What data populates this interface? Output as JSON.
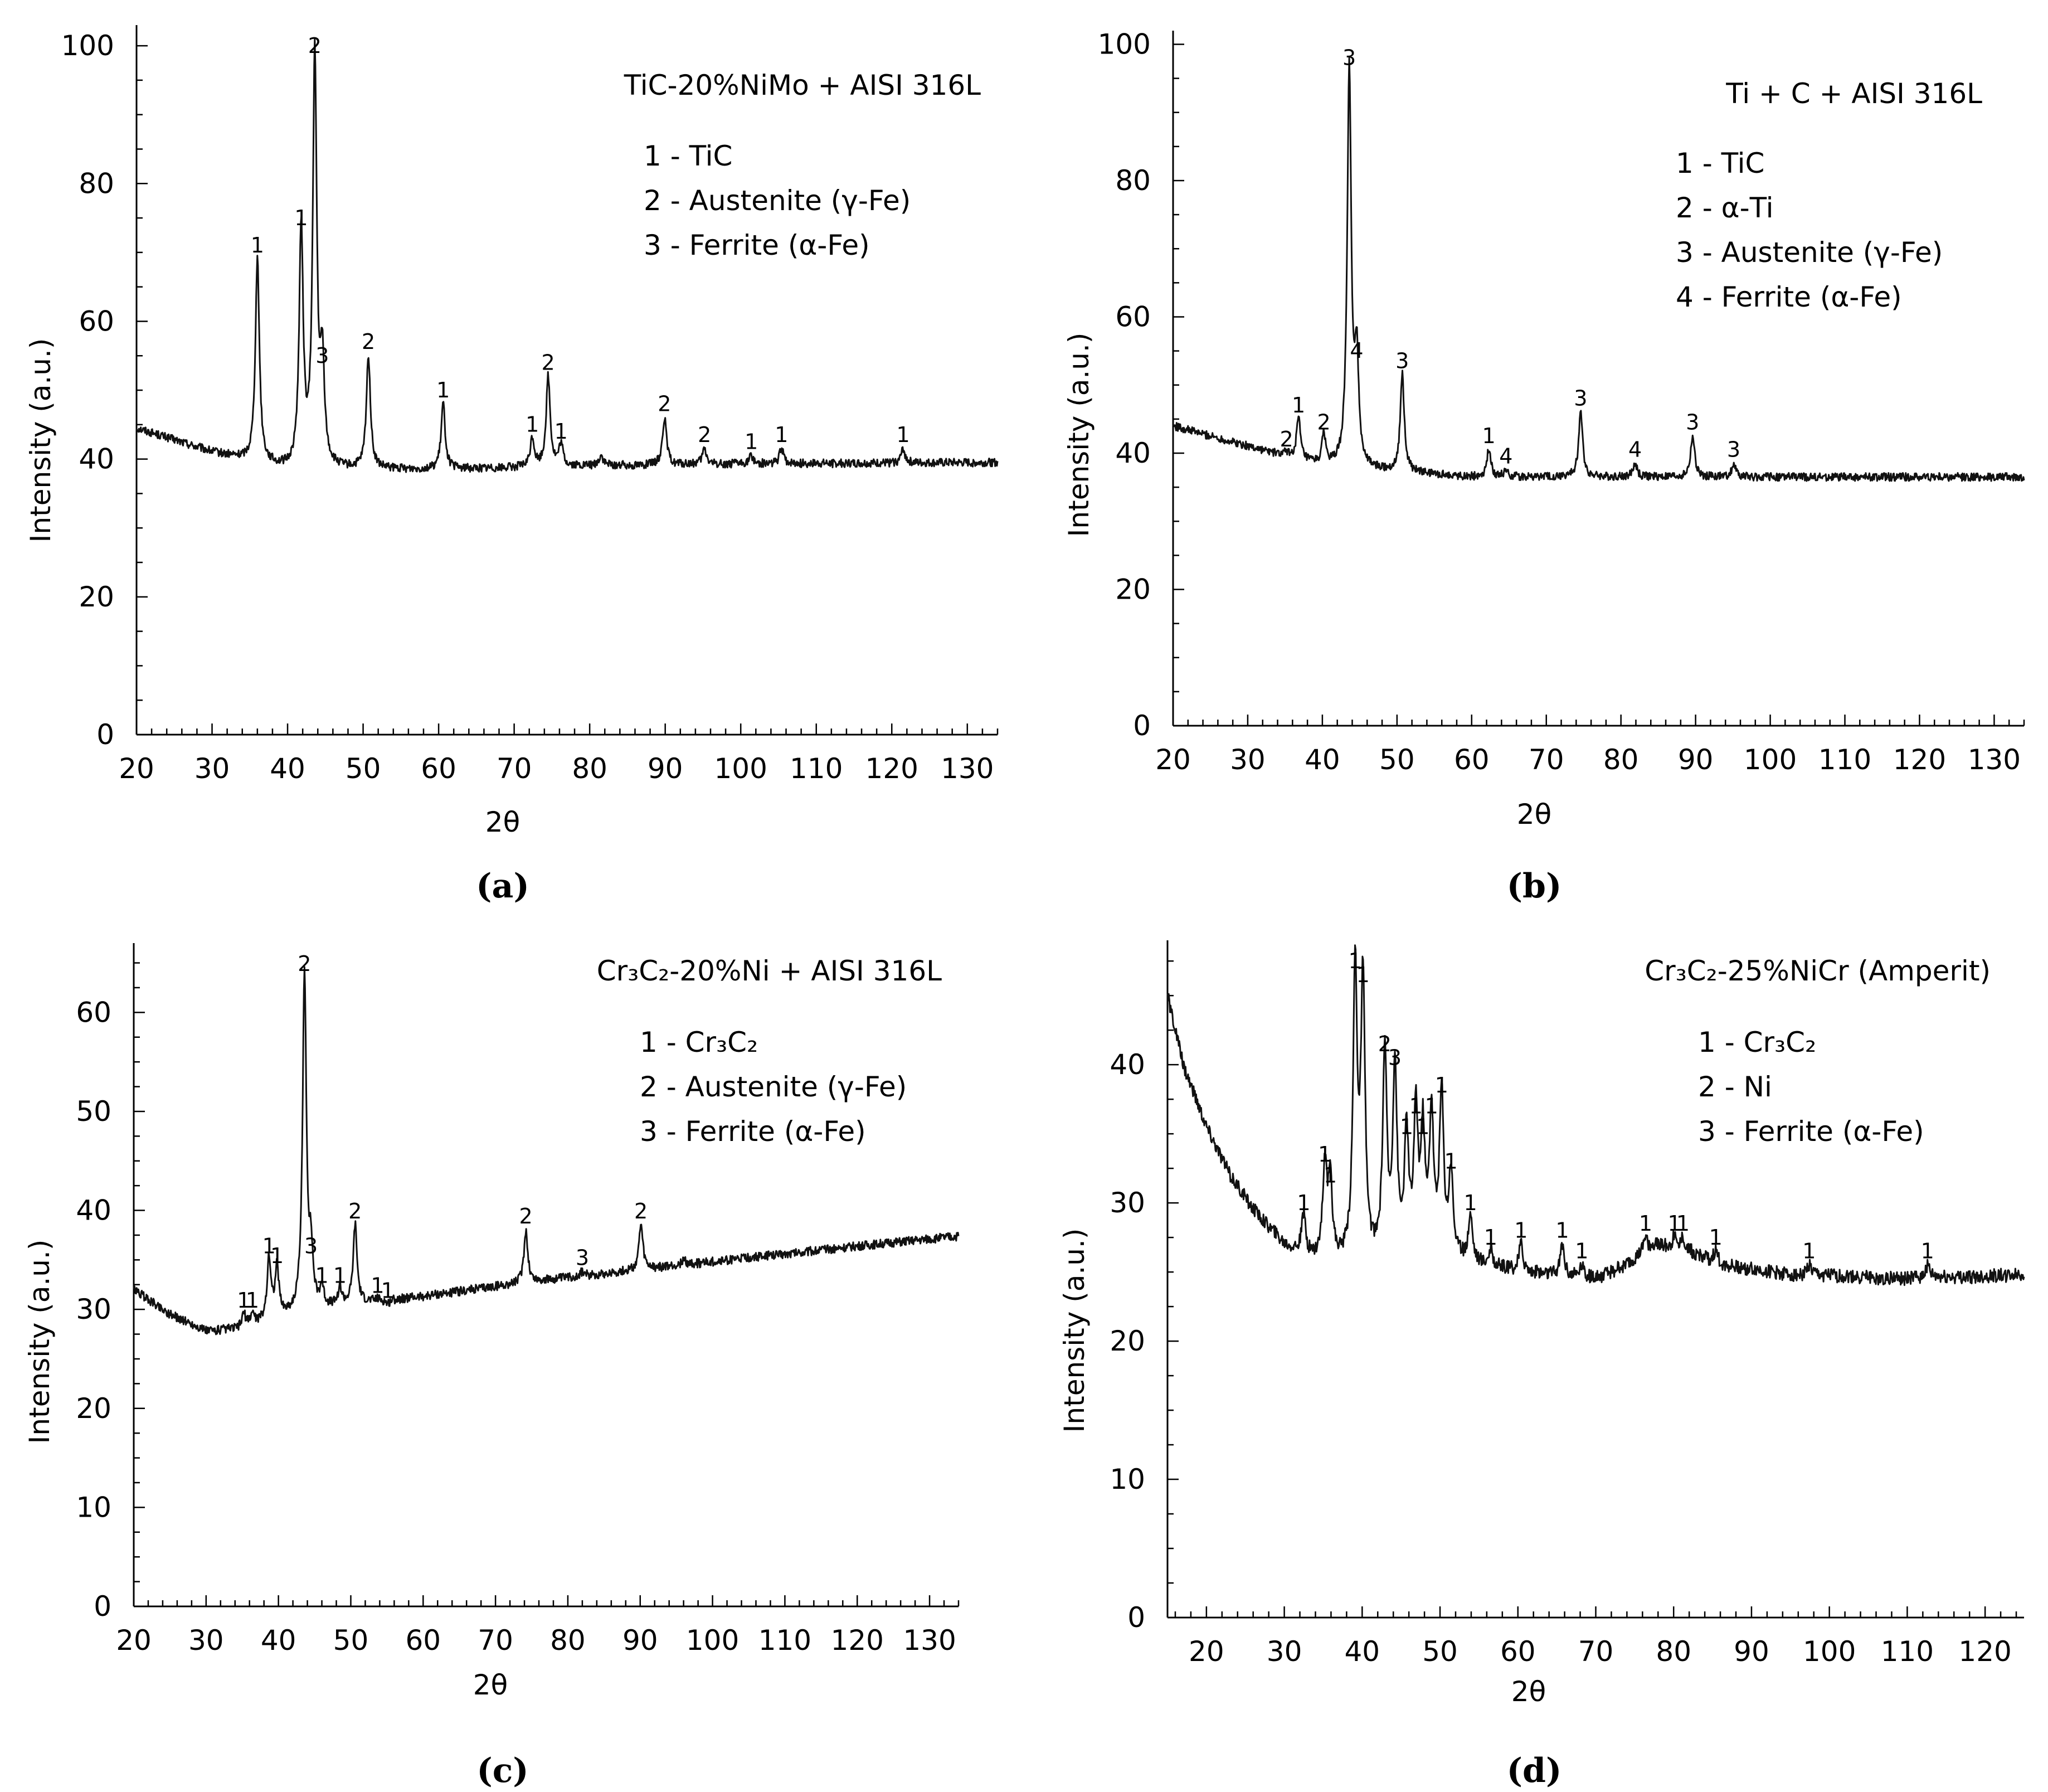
{
  "figure": {
    "panels": [
      {
        "caption": "(a)",
        "chart_data": {
          "type": "line",
          "title": "TiC-20%NiMo + AISI 316L",
          "xlabel": "2θ",
          "ylabel": "Intensity (a.u.)",
          "xlim": [
            20,
            134
          ],
          "ylim": [
            0,
            103
          ],
          "xticks": [
            20,
            30,
            40,
            50,
            60,
            70,
            80,
            90,
            100,
            110,
            120,
            130
          ],
          "yticks": [
            0,
            20,
            40,
            60,
            80,
            100
          ],
          "legend": [
            "1 - TiC",
            "2 - Austenite (γ-Fe)",
            "3 - Ferrite (α-Fe)"
          ],
          "legend_position": "top-right",
          "background": [
            [
              20,
              44.5
            ],
            [
              30,
              41
            ],
            [
              40,
              38.5
            ],
            [
              60,
              38.5
            ],
            [
              80,
              39
            ],
            [
              100,
              39.3
            ],
            [
              134,
              39.5
            ]
          ],
          "noise_amplitude": 0.6,
          "peaks": [
            {
              "x": 36.0,
              "y": 69,
              "label": "1"
            },
            {
              "x": 41.8,
              "y": 73,
              "label": "1"
            },
            {
              "x": 43.6,
              "y": 98,
              "label": "2"
            },
            {
              "x": 44.6,
              "y": 53,
              "label": "3"
            },
            {
              "x": 50.7,
              "y": 55,
              "label": "2"
            },
            {
              "x": 60.6,
              "y": 48,
              "label": "1"
            },
            {
              "x": 72.4,
              "y": 43,
              "label": "1"
            },
            {
              "x": 74.5,
              "y": 52,
              "label": "2"
            },
            {
              "x": 76.2,
              "y": 42,
              "label": "1"
            },
            {
              "x": 81.5,
              "y": 40.5,
              "label": ""
            },
            {
              "x": 89.9,
              "y": 46,
              "label": "2"
            },
            {
              "x": 95.2,
              "y": 41.5,
              "label": "2"
            },
            {
              "x": 101.4,
              "y": 40.5,
              "label": "1"
            },
            {
              "x": 105.4,
              "y": 41.5,
              "label": "1"
            },
            {
              "x": 121.5,
              "y": 41.5,
              "label": "1"
            }
          ]
        }
      },
      {
        "caption": "(b)",
        "chart_data": {
          "type": "line",
          "title": "Ti + C + AISI 316L",
          "xlabel": "2θ",
          "ylabel": "Intensity (a.u.)",
          "xlim": [
            20,
            134
          ],
          "ylim": [
            0,
            102
          ],
          "xticks": [
            20,
            30,
            40,
            50,
            60,
            70,
            80,
            90,
            100,
            110,
            120,
            130
          ],
          "yticks": [
            0,
            20,
            40,
            60,
            80,
            100
          ],
          "legend": [
            "1 - TiC",
            "2 - α-Ti",
            "3 - Austenite (γ-Fe)",
            "4 - Ferrite (α-Fe)"
          ],
          "legend_position": "top-right",
          "background": [
            [
              20,
              44
            ],
            [
              30,
              41
            ],
            [
              40,
              38
            ],
            [
              60,
              36.5
            ],
            [
              80,
              36.5
            ],
            [
              100,
              36.5
            ],
            [
              134,
              36.5
            ]
          ],
          "noise_amplitude": 0.6,
          "peaks": [
            {
              "x": 35.2,
              "y": 40,
              "label": "2"
            },
            {
              "x": 36.8,
              "y": 45,
              "label": "1"
            },
            {
              "x": 40.2,
              "y": 42.5,
              "label": "2"
            },
            {
              "x": 43.6,
              "y": 96,
              "label": "3"
            },
            {
              "x": 44.6,
              "y": 53,
              "label": "4"
            },
            {
              "x": 50.7,
              "y": 51.5,
              "label": "3"
            },
            {
              "x": 62.3,
              "y": 40.5,
              "label": "1"
            },
            {
              "x": 64.6,
              "y": 37.5,
              "label": "4"
            },
            {
              "x": 74.6,
              "y": 46,
              "label": "3"
            },
            {
              "x": 81.9,
              "y": 38.5,
              "label": "4"
            },
            {
              "x": 89.6,
              "y": 42.5,
              "label": "3"
            },
            {
              "x": 95.1,
              "y": 38.5,
              "label": "3"
            }
          ]
        }
      },
      {
        "caption": "(c)",
        "chart_data": {
          "type": "line",
          "title": "Cr₃C₂-20%Ni + AISI 316L",
          "xlabel": "2θ",
          "ylabel": "Intensity (a.u.)",
          "xlim": [
            20,
            134
          ],
          "ylim": [
            0,
            67
          ],
          "xticks": [
            20,
            30,
            40,
            50,
            60,
            70,
            80,
            90,
            100,
            110,
            120,
            130
          ],
          "yticks": [
            0,
            10,
            20,
            30,
            40,
            50,
            60
          ],
          "legend": [
            "1 - Cr₃C₂",
            "2 - Austenite (γ-Fe)",
            "3 - Ferrite (α-Fe)"
          ],
          "legend_position": "top-right",
          "background": [
            [
              20,
              32
            ],
            [
              25,
              29.5
            ],
            [
              30,
              27.8
            ],
            [
              35,
              28
            ],
            [
              40,
              29.2
            ],
            [
              50,
              30.5
            ],
            [
              60,
              31.3
            ],
            [
              70,
              32.3
            ],
            [
              80,
              33.2
            ],
            [
              90,
              34
            ],
            [
              100,
              34.8
            ],
            [
              110,
              35.6
            ],
            [
              120,
              36.4
            ],
            [
              134,
              37.4
            ]
          ],
          "noise_amplitude": 0.45,
          "peaks": [
            {
              "x": 35.2,
              "y": 29.5,
              "label": "1"
            },
            {
              "x": 36.4,
              "y": 29.5,
              "label": "1"
            },
            {
              "x": 38.7,
              "y": 35,
              "label": "1"
            },
            {
              "x": 39.8,
              "y": 34,
              "label": "1"
            },
            {
              "x": 43.6,
              "y": 63.5,
              "label": "2"
            },
            {
              "x": 44.5,
              "y": 35,
              "label": "3"
            },
            {
              "x": 46.0,
              "y": 32,
              "label": "1"
            },
            {
              "x": 48.5,
              "y": 32,
              "label": "1"
            },
            {
              "x": 50.6,
              "y": 38.5,
              "label": "2"
            },
            {
              "x": 53.7,
              "y": 31,
              "label": "1"
            },
            {
              "x": 55.1,
              "y": 30.5,
              "label": "1"
            },
            {
              "x": 74.2,
              "y": 38,
              "label": "2"
            },
            {
              "x": 82.0,
              "y": 33.8,
              "label": "3"
            },
            {
              "x": 90.1,
              "y": 38.5,
              "label": "2"
            },
            {
              "x": 96.0,
              "y": 35,
              "label": ""
            }
          ]
        }
      },
      {
        "caption": "(d)",
        "chart_data": {
          "type": "line",
          "title": "Cr₃C₂-25%NiCr (Amperit)",
          "xlabel": "2θ",
          "ylabel": "Intensity (a.u.)",
          "xlim": [
            15,
            125
          ],
          "ylim": [
            0,
            49
          ],
          "xticks": [
            20,
            30,
            40,
            50,
            60,
            70,
            80,
            90,
            100,
            110,
            120
          ],
          "yticks": [
            0,
            10,
            20,
            30,
            40
          ],
          "legend": [
            "1 - Cr₃C₂",
            "2 - Ni",
            "3 - Ferrite (α-Fe)"
          ],
          "legend_position": "top-right",
          "background": [
            [
              15,
              45
            ],
            [
              17,
              40
            ],
            [
              20,
              35.5
            ],
            [
              23,
              32
            ],
            [
              26,
              29.5
            ],
            [
              30,
              27
            ],
            [
              33,
              26
            ],
            [
              40,
              25.5
            ],
            [
              50,
              26
            ],
            [
              55,
              25.5
            ],
            [
              60,
              25
            ],
            [
              70,
              24.5
            ],
            [
              74,
              25.5
            ],
            [
              78,
              27
            ],
            [
              82,
              26.5
            ],
            [
              86,
              25.5
            ],
            [
              95,
              24.8
            ],
            [
              110,
              24.5
            ],
            [
              125,
              24.8
            ]
          ],
          "noise_amplitude": 0.5,
          "peaks": [
            {
              "x": 32.5,
              "y": 29,
              "label": "1"
            },
            {
              "x": 35.2,
              "y": 32.5,
              "label": "1"
            },
            {
              "x": 35.9,
              "y": 31,
              "label": "1"
            },
            {
              "x": 39.1,
              "y": 46.5,
              "label": "1"
            },
            {
              "x": 40.1,
              "y": 45.5,
              "label": "1"
            },
            {
              "x": 42.9,
              "y": 40.5,
              "label": "2"
            },
            {
              "x": 44.2,
              "y": 39.5,
              "label": "3"
            },
            {
              "x": 45.7,
              "y": 34.5,
              "label": "1"
            },
            {
              "x": 46.9,
              "y": 36,
              "label": "1"
            },
            {
              "x": 47.8,
              "y": 34.5,
              "label": "1"
            },
            {
              "x": 48.9,
              "y": 36,
              "label": "1"
            },
            {
              "x": 50.2,
              "y": 37.5,
              "label": "1"
            },
            {
              "x": 51.4,
              "y": 32,
              "label": "1"
            },
            {
              "x": 53.9,
              "y": 29,
              "label": "1"
            },
            {
              "x": 56.5,
              "y": 26.5,
              "label": "1"
            },
            {
              "x": 60.4,
              "y": 27,
              "label": "1"
            },
            {
              "x": 65.7,
              "y": 27,
              "label": "1"
            },
            {
              "x": 68.2,
              "y": 25.5,
              "label": "1"
            },
            {
              "x": 76.4,
              "y": 27.5,
              "label": "1"
            },
            {
              "x": 80.1,
              "y": 27.5,
              "label": "1"
            },
            {
              "x": 81.2,
              "y": 27.5,
              "label": "1"
            },
            {
              "x": 85.4,
              "y": 26.5,
              "label": "1"
            },
            {
              "x": 97.4,
              "y": 25.5,
              "label": "1"
            },
            {
              "x": 112.6,
              "y": 25.5,
              "label": "1"
            }
          ]
        }
      }
    ]
  }
}
